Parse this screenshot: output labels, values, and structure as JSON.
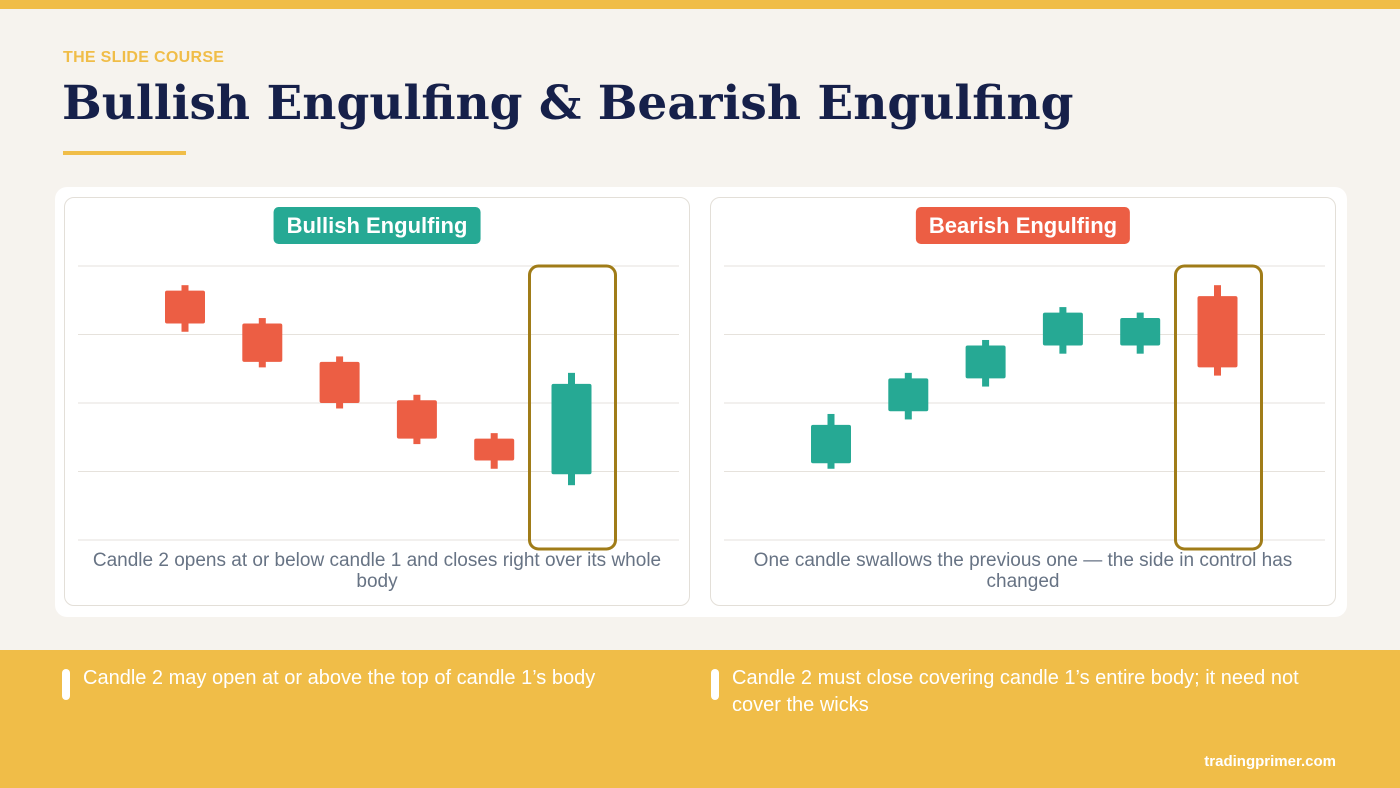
{
  "header": {
    "eyebrow": "THE SLIDE COURSE",
    "title": "Bullish Engulfing & Bearish Engulfing"
  },
  "colors": {
    "accent": "#f0bd48",
    "title": "#16204a",
    "bull": "#26a994",
    "bear": "#ec5e44",
    "highlight_box": "#a07c18",
    "caption": "#677384"
  },
  "panels": [
    {
      "label": "Bullish Engulfing",
      "caption": "Candle 2 opens at or below candle 1 and closes right over its whole body",
      "candles": [
        {
          "direction": "down",
          "open": 91,
          "close": 79,
          "high": 93,
          "low": 76
        },
        {
          "direction": "down",
          "open": 79,
          "close": 65,
          "high": 81,
          "low": 63
        },
        {
          "direction": "down",
          "open": 65,
          "close": 50,
          "high": 67,
          "low": 48
        },
        {
          "direction": "down",
          "open": 51,
          "close": 37,
          "high": 53,
          "low": 35
        },
        {
          "direction": "down",
          "open": 37,
          "close": 29,
          "high": 39,
          "low": 26
        },
        {
          "direction": "up",
          "open": 24,
          "close": 57,
          "high": 61,
          "low": 20
        }
      ],
      "highlight_candle": 6
    },
    {
      "label": "Bearish Engulfing",
      "caption": "One candle swallows the previous one — the side in control has changed",
      "candles": [
        {
          "direction": "up",
          "open": 28,
          "close": 42,
          "high": 46,
          "low": 26
        },
        {
          "direction": "up",
          "open": 47,
          "close": 59,
          "high": 61,
          "low": 44
        },
        {
          "direction": "up",
          "open": 59,
          "close": 71,
          "high": 73,
          "low": 56
        },
        {
          "direction": "up",
          "open": 71,
          "close": 83,
          "high": 85,
          "low": 68
        },
        {
          "direction": "up",
          "open": 71,
          "close": 81,
          "high": 83,
          "low": 68
        },
        {
          "direction": "down",
          "open": 89,
          "close": 63,
          "high": 93,
          "low": 60
        }
      ],
      "highlight_candle": 6
    }
  ],
  "notes": [
    "Candle 2 may open at or above the top of candle 1’s body",
    "Candle 2 must close covering candle 1’s entire body; it need not cover the wicks"
  ],
  "footer": "tradingprimer.com"
}
